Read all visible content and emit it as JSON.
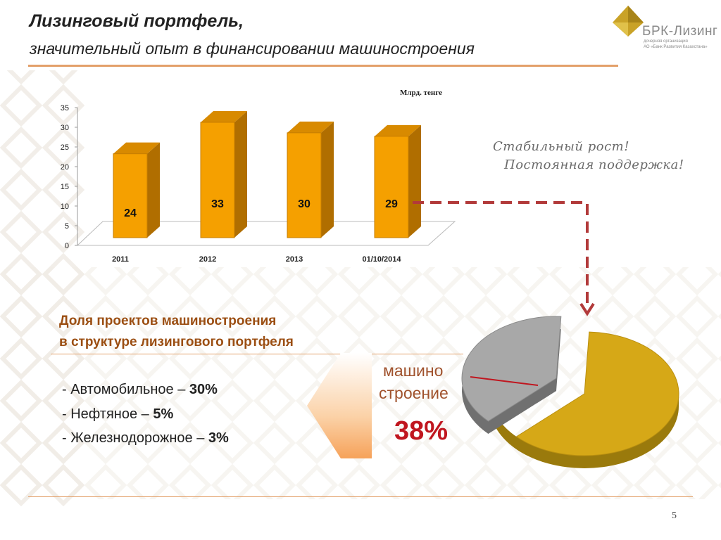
{
  "header": {
    "title": "Лизинговый портфель,",
    "subtitle": "значительный опыт в финансировании машиностроения"
  },
  "logo": {
    "name": "БРК-Лизинг",
    "sub_line1": "дочерняя организация",
    "sub_line2": "АО «Банк Развития Казахстана»"
  },
  "chart_data": [
    {
      "type": "bar",
      "title": "",
      "unit_label": "Млрд. тенге",
      "xlabel": "",
      "ylabel": "",
      "categories": [
        "2011",
        "2012",
        "2013",
        "01/10/2014"
      ],
      "values": [
        24,
        33,
        30,
        29
      ],
      "data_labels": [
        "24",
        "33",
        "30",
        "29"
      ],
      "ylim": [
        0,
        35
      ],
      "y_ticks": [
        "0",
        "5",
        "10",
        "15",
        "20",
        "25",
        "30",
        "35"
      ],
      "bar_color": "#f5a000",
      "grid": false
    },
    {
      "type": "pie",
      "slices": [
        {
          "label": "машиностроение",
          "value": 38,
          "color": "#a8a8a8"
        },
        {
          "label": "",
          "value": 62,
          "color": "#d6a817"
        }
      ]
    }
  ],
  "slogans": {
    "line1": "Стабильный рост!",
    "line2": "Постоянная поддержка!"
  },
  "share": {
    "heading_line1": "Доля проектов машиностроения",
    "heading_line2": "в структуре лизингового портфеля",
    "items": [
      {
        "prefix": "- Автомобильное – ",
        "value": "30%"
      },
      {
        "prefix": "- Нефтяное – ",
        "value": "5%"
      },
      {
        "prefix": "- Железнодорожное – ",
        "value": "3%"
      }
    ],
    "machine_line1": "машино",
    "machine_line2": "строение",
    "machine_pct": "38%"
  },
  "footer": {
    "page_number": "5"
  },
  "colors": {
    "accent_rule": "#e3a06a",
    "heading": "#9b4e12",
    "bar": "#f5a000",
    "pie_main": "#d6a817",
    "pie_slice": "#a8a8a8",
    "highlight": "#c0161f",
    "dashed_arrow": "#b23a3a"
  }
}
